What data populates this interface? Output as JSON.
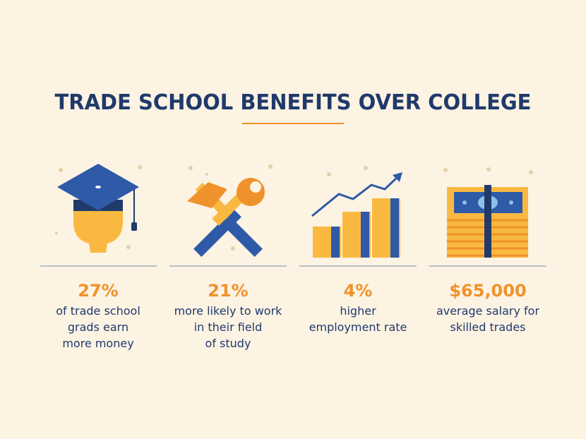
{
  "title": "TRADE SCHOOL BENEFITS OVER COLLEGE",
  "stats": [
    {
      "value": "27%",
      "lines": [
        "of trade school",
        "grads earn",
        "more money"
      ]
    },
    {
      "value": "21%",
      "lines": [
        "more likely to work",
        "in their field",
        "of study"
      ]
    },
    {
      "value": "4%",
      "lines": [
        "higher",
        "employment rate"
      ]
    },
    {
      "value": "$65,000",
      "lines": [
        "average salary for",
        "skilled trades"
      ]
    }
  ]
}
